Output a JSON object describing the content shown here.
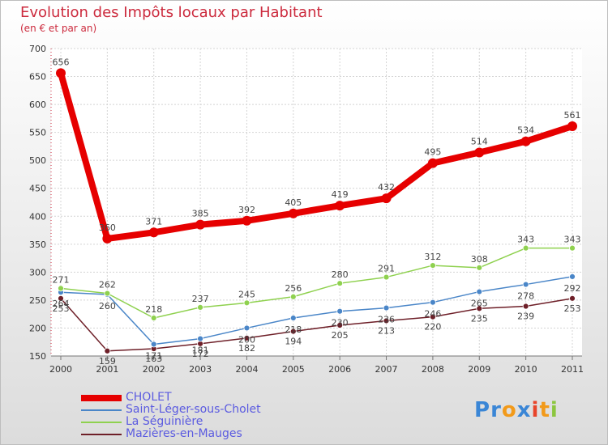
{
  "header": {
    "title": "Evolution des Impôts locaux par Habitant",
    "subtitle": "(en € et par an)"
  },
  "logo": {
    "text": "Proxiti"
  },
  "chart_data": {
    "type": "line",
    "title": "Evolution des Impôts locaux par Habitant",
    "subtitle": "(en € et par an)",
    "xlabel": "",
    "ylabel": "",
    "categories": [
      "2000",
      "2001",
      "2002",
      "2003",
      "2004",
      "2005",
      "2006",
      "2007",
      "2008",
      "2009",
      "2010",
      "2011"
    ],
    "yticks": [
      150,
      200,
      250,
      300,
      350,
      400,
      450,
      500,
      550,
      600,
      650,
      700
    ],
    "ylim": [
      150,
      700
    ],
    "series": [
      {
        "name": "CHOLET",
        "color": "#e60000",
        "values": [
          656,
          360,
          371,
          385,
          392,
          405,
          419,
          432,
          495,
          514,
          534,
          561
        ]
      },
      {
        "name": "Saint-Léger-sous-Cholet",
        "color": "#4a86c8",
        "values": [
          264,
          260,
          171,
          181,
          200,
          218,
          230,
          236,
          246,
          265,
          278,
          292
        ]
      },
      {
        "name": "La Séguinière",
        "color": "#8fd14f",
        "values": [
          271,
          262,
          218,
          237,
          245,
          256,
          280,
          291,
          312,
          308,
          343,
          343
        ]
      },
      {
        "name": "Mazières-en-Mauges",
        "color": "#6e1f28",
        "values": [
          253,
          159,
          163,
          172,
          182,
          194,
          205,
          213,
          220,
          235,
          239,
          253
        ]
      }
    ]
  }
}
